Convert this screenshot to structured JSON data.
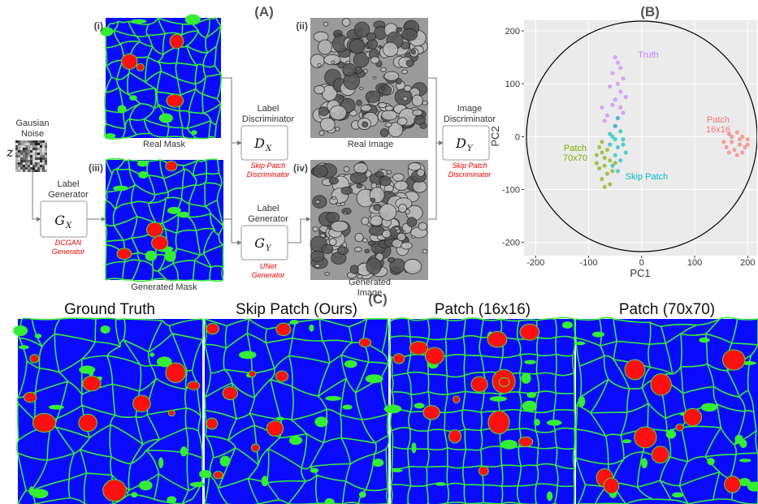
{
  "panel_a": {
    "label": "(A)",
    "noise": {
      "lines": [
        "Gausian",
        "Noise"
      ],
      "var": "z"
    },
    "label_generator_x": {
      "lines": [
        "Label",
        "Generator"
      ],
      "symbol": "G",
      "subscript": "X",
      "note": [
        "DCGAN",
        "Generator"
      ]
    },
    "label_discriminator": {
      "lines": [
        "Label",
        "Discriminator"
      ],
      "symbol": "D",
      "subscript": "X",
      "note": [
        "Skip Patch",
        "Discriminator"
      ]
    },
    "label_generator_y": {
      "lines": [
        "Label",
        "Generator"
      ],
      "symbol": "G",
      "subscript": "Y",
      "note": [
        "UNet",
        "Generator"
      ]
    },
    "image_discriminator": {
      "lines": [
        "Image",
        "Discriminator"
      ],
      "symbol": "D",
      "subscript": "Y",
      "note": [
        "Skip Patch",
        "Discriminator"
      ]
    },
    "images": {
      "real_mask": {
        "tag": "(i)",
        "caption": [
          "Real Mask"
        ]
      },
      "real_image": {
        "tag": "(ii)",
        "caption": [
          "Real Image"
        ]
      },
      "generated_mask": {
        "tag": "(iii)",
        "caption": [
          "Generated Mask"
        ]
      },
      "generated_image": {
        "tag": "(iv)",
        "caption": [
          "Generated",
          "Image"
        ]
      }
    }
  },
  "panel_b": {
    "label": "(B)",
    "chart_data": {
      "type": "scatter",
      "x_label": "PC1",
      "y_label": "PC2",
      "xlim": [
        -222,
        218
      ],
      "ylim": [
        -225,
        220
      ],
      "xticks": [
        -200,
        -100,
        0,
        100,
        200
      ],
      "yticks": [
        -200,
        -100,
        0,
        100,
        200
      ],
      "grid": true,
      "series": [
        {
          "name": "Truth",
          "color": "#c77cff",
          "x": [
            -50,
            -45,
            -40,
            -55,
            -35,
            -45,
            -60,
            -40,
            -30,
            -50,
            -55,
            -40,
            -35,
            -65,
            -45,
            -75,
            -50,
            -70
          ],
          "values": [
            150,
            140,
            130,
            120,
            110,
            100,
            95,
            85,
            75,
            70,
            60,
            55,
            45,
            40,
            35,
            55,
            20,
            30
          ]
        },
        {
          "name": "Patch 16x16",
          "color": "#f8766d",
          "x": [
            165,
            180,
            190,
            200,
            170,
            185,
            155,
            195,
            175,
            160,
            190,
            180,
            200,
            165,
            170,
            185
          ],
          "values": [
            5,
            8,
            0,
            -5,
            -10,
            -15,
            -10,
            -20,
            -25,
            -20,
            -30,
            -35,
            -15,
            -30,
            0,
            -5
          ]
        },
        {
          "name": "Patch 70x70",
          "color": "#7cae00",
          "x": [
            -80,
            -75,
            -70,
            -85,
            -60,
            -70,
            -80,
            -65,
            -55,
            -75,
            -70,
            -60,
            -85,
            -50,
            -65,
            -75
          ],
          "values": [
            -20,
            -30,
            -40,
            -35,
            -45,
            -55,
            -60,
            -70,
            -65,
            -80,
            -95,
            -90,
            -50,
            -50,
            -25,
            -10
          ]
        },
        {
          "name": "Skip Patch",
          "color": "#00bfc4",
          "x": [
            -45,
            -50,
            -40,
            -55,
            -35,
            -60,
            -45,
            -30,
            -50,
            -40,
            -55,
            -45,
            -35,
            -60,
            -50
          ],
          "values": [
            35,
            20,
            10,
            0,
            -5,
            -15,
            -20,
            -30,
            -35,
            -45,
            -55,
            -65,
            -15,
            5,
            -5
          ]
        }
      ]
    }
  },
  "panel_c": {
    "label": "(C)",
    "titles": [
      "Ground Truth",
      "Skip Patch (Ours)",
      "Patch (16x16)",
      "Patch (70x70)"
    ]
  }
}
